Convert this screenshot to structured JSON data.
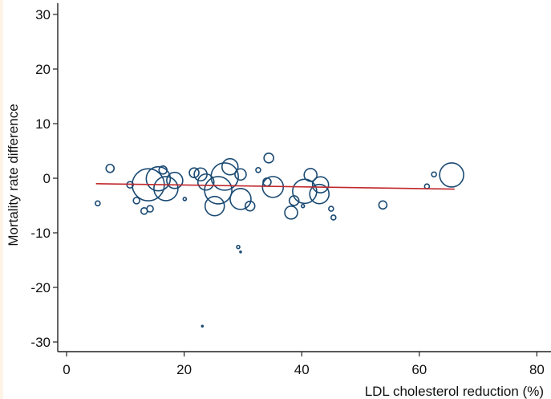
{
  "chart_data": {
    "type": "scatter",
    "subtype": "bubble",
    "title": "",
    "xlabel": "LDL cholesterol reduction (%)",
    "ylabel": "Mortality rate difference",
    "xlim": [
      0,
      80
    ],
    "ylim": [
      -30,
      30
    ],
    "xticks": [
      0,
      20,
      40,
      60,
      80
    ],
    "yticks": [
      -30,
      -20,
      -10,
      0,
      10,
      20,
      30
    ],
    "grid": false,
    "colors": {
      "bubble": "#1a4a73",
      "fit_line": "#c0282d",
      "axis": "#222222"
    },
    "points": [
      {
        "x": 5.3,
        "y": -4.6,
        "w": 3
      },
      {
        "x": 7.4,
        "y": 1.8,
        "w": 5
      },
      {
        "x": 10.8,
        "y": -1.2,
        "w": 4
      },
      {
        "x": 11.9,
        "y": -4.1,
        "w": 4
      },
      {
        "x": 13.2,
        "y": -6.0,
        "w": 4
      },
      {
        "x": 14.2,
        "y": -5.6,
        "w": 4
      },
      {
        "x": 13.9,
        "y": -1.2,
        "w": 20
      },
      {
        "x": 15.6,
        "y": -0.1,
        "w": 15
      },
      {
        "x": 16.9,
        "y": -1.9,
        "w": 15
      },
      {
        "x": 18.4,
        "y": -0.4,
        "w": 10
      },
      {
        "x": 16.4,
        "y": 1.5,
        "w": 5
      },
      {
        "x": 20.1,
        "y": -3.8,
        "w": 2
      },
      {
        "x": 21.7,
        "y": 1.0,
        "w": 6
      },
      {
        "x": 22.8,
        "y": 0.7,
        "w": 8
      },
      {
        "x": 23.7,
        "y": -0.7,
        "w": 10
      },
      {
        "x": 26.9,
        "y": 0.3,
        "w": 17
      },
      {
        "x": 25.8,
        "y": -2.2,
        "w": 17
      },
      {
        "x": 27.8,
        "y": 2.1,
        "w": 10
      },
      {
        "x": 25.2,
        "y": -5.1,
        "w": 12
      },
      {
        "x": 29.6,
        "y": 0.7,
        "w": 7
      },
      {
        "x": 29.6,
        "y": -3.8,
        "w": 13
      },
      {
        "x": 31.2,
        "y": -5.1,
        "w": 6
      },
      {
        "x": 32.6,
        "y": 1.5,
        "w": 3
      },
      {
        "x": 34.4,
        "y": 3.7,
        "w": 6
      },
      {
        "x": 35.1,
        "y": -1.6,
        "w": 13
      },
      {
        "x": 34.1,
        "y": -0.7,
        "w": 5
      },
      {
        "x": 41.5,
        "y": 0.6,
        "w": 8
      },
      {
        "x": 40.5,
        "y": -2.4,
        "w": 15
      },
      {
        "x": 43.2,
        "y": -1.2,
        "w": 10
      },
      {
        "x": 43.0,
        "y": -2.9,
        "w": 12
      },
      {
        "x": 38.7,
        "y": -4.1,
        "w": 6
      },
      {
        "x": 38.2,
        "y": -6.3,
        "w": 8
      },
      {
        "x": 40.2,
        "y": -5.1,
        "w": 2
      },
      {
        "x": 45.0,
        "y": -5.6,
        "w": 3
      },
      {
        "x": 45.4,
        "y": -7.2,
        "w": 3
      },
      {
        "x": 53.8,
        "y": -4.9,
        "w": 5
      },
      {
        "x": 62.5,
        "y": 0.7,
        "w": 3
      },
      {
        "x": 61.3,
        "y": -1.5,
        "w": 3
      },
      {
        "x": 65.5,
        "y": 0.6,
        "w": 15
      },
      {
        "x": 29.2,
        "y": -12.6,
        "w": 2
      },
      {
        "x": 29.6,
        "y": -13.5,
        "w": 1
      },
      {
        "x": 23.1,
        "y": -27.1,
        "w": 1
      }
    ],
    "fit_line": {
      "x": [
        5,
        66
      ],
      "y": [
        -1.0,
        -2.0
      ]
    }
  }
}
